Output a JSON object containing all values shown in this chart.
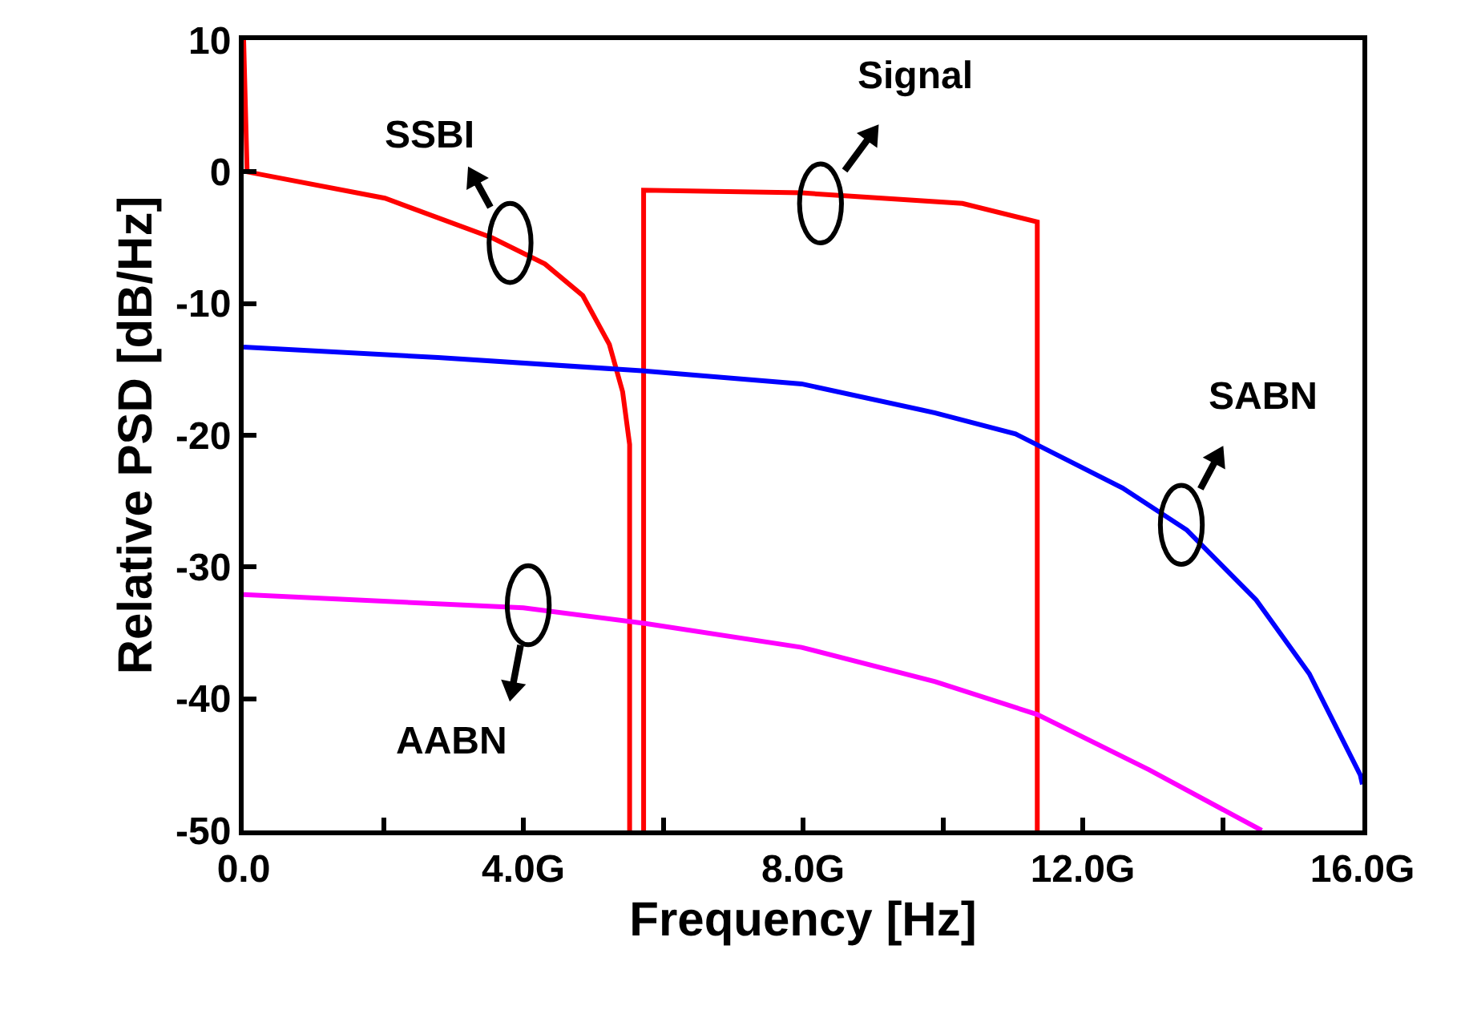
{
  "chart_data": {
    "type": "line",
    "xlabel": "Frequency [Hz]",
    "ylabel": "Relative PSD [dB/Hz]",
    "xlim": [
      0,
      16
    ],
    "ylim": [
      -50,
      10
    ],
    "xticks": [
      {
        "value": 0,
        "label": "0.0"
      },
      {
        "value": 2,
        "label": null
      },
      {
        "value": 4,
        "label": "4.0G"
      },
      {
        "value": 6,
        "label": null
      },
      {
        "value": 8,
        "label": "8.0G"
      },
      {
        "value": 10,
        "label": null
      },
      {
        "value": 12,
        "label": "12.0G"
      },
      {
        "value": 14,
        "label": null
      },
      {
        "value": 16,
        "label": "16.0G"
      }
    ],
    "yticks": [
      -50,
      -40,
      -30,
      -20,
      -10,
      0,
      10
    ],
    "grid": false,
    "legend": false,
    "marker": "none",
    "line_style": "solid",
    "series": [
      {
        "name": "SSBI",
        "color": "#ff0000",
        "x": [
          0,
          0.05,
          2.02,
          3.55,
          4.31,
          4.85,
          5.23,
          5.42,
          5.52,
          5.52
        ],
        "values": [
          10,
          0,
          -2.0,
          -5.0,
          -7.0,
          -9.4,
          -13.1,
          -16.7,
          -20.7,
          -50
        ]
      },
      {
        "name": "Signal",
        "color": "#ff0000",
        "x": [
          5.72,
          5.72,
          7.98,
          10.28,
          11.35,
          11.35
        ],
        "values": [
          -50,
          -1.4,
          -1.6,
          -2.4,
          -3.8,
          -50
        ]
      },
      {
        "name": "SABN",
        "color": "#0000ff",
        "x": [
          0,
          2.78,
          5.69,
          7.98,
          9.89,
          11.04,
          12.57,
          13.49,
          14.48,
          15.24,
          15.97,
          16
        ],
        "values": [
          -13.3,
          -14.1,
          -15.1,
          -16.1,
          -18.3,
          -19.9,
          -24.0,
          -27.2,
          -32.5,
          -38.1,
          -45.8,
          -46.5
        ]
      },
      {
        "name": "AABN",
        "color": "#ff00ff",
        "x": [
          0,
          4.0,
          5.76,
          7.98,
          9.89,
          11.35,
          12.95,
          14.56
        ],
        "values": [
          -32.1,
          -33.1,
          -34.3,
          -36.1,
          -38.7,
          -41.2,
          -45.4,
          -50
        ]
      }
    ]
  }
}
